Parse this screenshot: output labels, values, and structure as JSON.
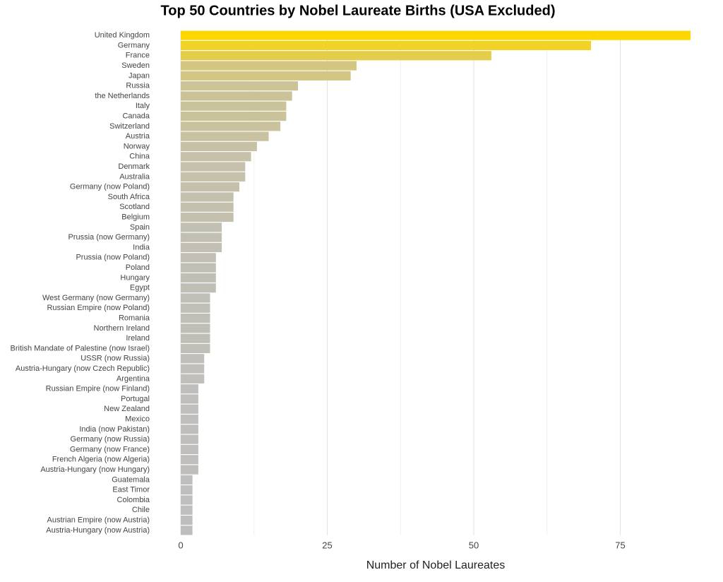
{
  "chart_data": {
    "type": "bar",
    "orientation": "horizontal",
    "title": "Top 50 Countries by Nobel Laureate Births (USA Excluded)",
    "x_label": "Number of Nobel Laureates",
    "categories": [
      "United Kingdom",
      "Germany",
      "France",
      "Sweden",
      "Japan",
      "Russia",
      "the Netherlands",
      "Italy",
      "Canada",
      "Switzerland",
      "Austria",
      "Norway",
      "China",
      "Denmark",
      "Australia",
      "Germany (now Poland)",
      "South Africa",
      "Scotland",
      "Belgium",
      "Spain",
      "Prussia (now Germany)",
      "India",
      "Prussia (now Poland)",
      "Poland",
      "Hungary",
      "Egypt",
      "West Germany (now Germany)",
      "Russian Empire (now Poland)",
      "Romania",
      "Northern Ireland",
      "Ireland",
      "British Mandate of Palestine (now Israel)",
      "USSR (now Russia)",
      "Austria-Hungary (now Czech Republic)",
      "Argentina",
      "Russian Empire (now Finland)",
      "Portugal",
      "New Zealand",
      "Mexico",
      "India (now Pakistan)",
      "Germany (now Russia)",
      "Germany (now France)",
      "French Algeria (now Algeria)",
      "Austria-Hungary (now Hungary)",
      "Guatemala",
      "East Timor",
      "Colombia",
      "Chile",
      "Austrian Empire (now Austria)",
      "Austria-Hungary (now Austria)"
    ],
    "values": [
      87,
      70,
      53,
      30,
      29,
      20,
      19,
      18,
      18,
      17,
      15,
      13,
      12,
      11,
      11,
      10,
      9,
      9,
      9,
      7,
      7,
      7,
      6,
      6,
      6,
      6,
      5,
      5,
      5,
      5,
      5,
      5,
      4,
      4,
      4,
      3,
      3,
      3,
      3,
      3,
      3,
      3,
      3,
      3,
      2,
      2,
      2,
      2,
      2,
      2
    ],
    "color_scale": [
      "#bebebe",
      "#ffd700"
    ],
    "xlim": [
      0,
      90
    ],
    "xticks": [
      0,
      25,
      50,
      75
    ],
    "xminor": [
      12.5,
      37.5,
      62.5
    ],
    "grid": true
  }
}
